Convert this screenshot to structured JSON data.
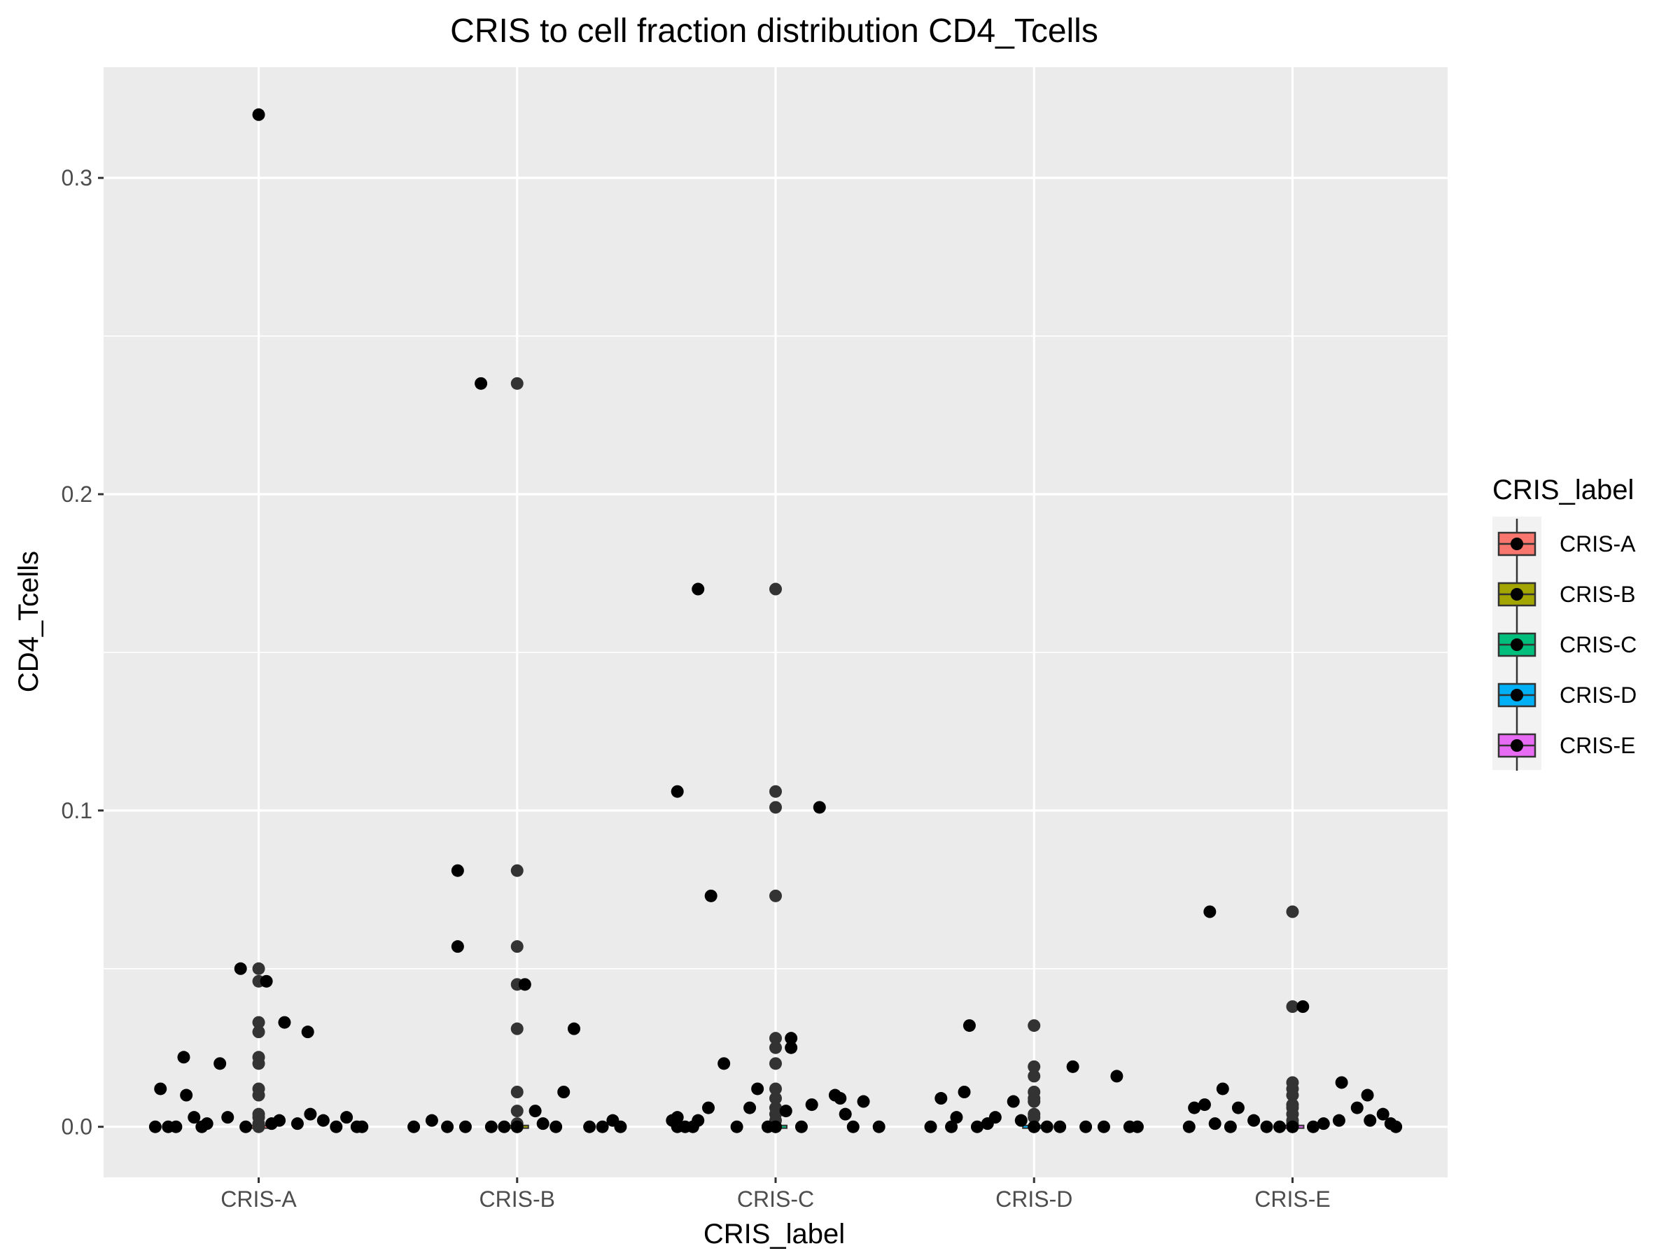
{
  "chart_data": {
    "type": "scatter",
    "title": "CRIS to cell fraction distribution CD4_Tcells",
    "xlabel": "CRIS_label",
    "ylabel": "CD4_Tcells",
    "categories": [
      "CRIS-A",
      "CRIS-B",
      "CRIS-C",
      "CRIS-D",
      "CRIS-E"
    ],
    "ylim": [
      -0.016,
      0.335
    ],
    "yticks": [
      0.0,
      0.1,
      0.2,
      0.3
    ],
    "ytick_labels": [
      "0.0",
      "0.1",
      "0.2",
      "0.3"
    ],
    "grid": true,
    "legend": {
      "title": "CRIS_label",
      "position": "right",
      "entries": [
        {
          "label": "CRIS-A",
          "color": "#F8766D"
        },
        {
          "label": "CRIS-B",
          "color": "#A3A500"
        },
        {
          "label": "CRIS-C",
          "color": "#00BF7D"
        },
        {
          "label": "CRIS-D",
          "color": "#00B0F6"
        },
        {
          "label": "CRIS-E",
          "color": "#E76BF3"
        }
      ]
    },
    "colors": {
      "panel_bg": "#EBEBEB",
      "grid": "#FFFFFF",
      "point": "#000000",
      "box_point": "#333333"
    },
    "series": [
      {
        "category": "CRIS-A",
        "jitter_points": [
          {
            "x": -0.4,
            "y": 0.0
          },
          {
            "x": -0.38,
            "y": 0.012
          },
          {
            "x": -0.35,
            "y": 0.0
          },
          {
            "x": -0.32,
            "y": 0.0
          },
          {
            "x": -0.29,
            "y": 0.022
          },
          {
            "x": -0.28,
            "y": 0.01
          },
          {
            "x": -0.25,
            "y": 0.003
          },
          {
            "x": -0.22,
            "y": 0.0
          },
          {
            "x": -0.2,
            "y": 0.001
          },
          {
            "x": -0.15,
            "y": 0.02
          },
          {
            "x": -0.12,
            "y": 0.003
          },
          {
            "x": -0.07,
            "y": 0.05
          },
          {
            "x": -0.05,
            "y": 0.0
          },
          {
            "x": 0.0,
            "y": 0.32
          },
          {
            "x": 0.03,
            "y": 0.046
          },
          {
            "x": 0.05,
            "y": 0.001
          },
          {
            "x": 0.08,
            "y": 0.002
          },
          {
            "x": 0.1,
            "y": 0.033
          },
          {
            "x": 0.15,
            "y": 0.001
          },
          {
            "x": 0.19,
            "y": 0.03
          },
          {
            "x": 0.2,
            "y": 0.004
          },
          {
            "x": 0.25,
            "y": 0.002
          },
          {
            "x": 0.3,
            "y": 0.0
          },
          {
            "x": 0.34,
            "y": 0.003
          },
          {
            "x": 0.38,
            "y": 0.0
          },
          {
            "x": 0.4,
            "y": 0.0
          }
        ],
        "box_points": [
          0.05,
          0.046,
          0.033,
          0.03,
          0.022,
          0.02,
          0.012,
          0.01,
          0.004,
          0.003,
          0.001,
          0.0
        ]
      },
      {
        "category": "CRIS-B",
        "jitter_points": [
          {
            "x": -0.4,
            "y": 0.0
          },
          {
            "x": -0.33,
            "y": 0.002
          },
          {
            "x": -0.27,
            "y": 0.0
          },
          {
            "x": -0.23,
            "y": 0.081
          },
          {
            "x": -0.23,
            "y": 0.057
          },
          {
            "x": -0.2,
            "y": 0.0
          },
          {
            "x": -0.14,
            "y": 0.235
          },
          {
            "x": -0.1,
            "y": 0.0
          },
          {
            "x": -0.05,
            "y": 0.0
          },
          {
            "x": 0.0,
            "y": 0.0
          },
          {
            "x": 0.03,
            "y": 0.045
          },
          {
            "x": 0.07,
            "y": 0.005
          },
          {
            "x": 0.1,
            "y": 0.001
          },
          {
            "x": 0.15,
            "y": 0.0
          },
          {
            "x": 0.18,
            "y": 0.011
          },
          {
            "x": 0.22,
            "y": 0.031
          },
          {
            "x": 0.28,
            "y": 0.0
          },
          {
            "x": 0.33,
            "y": 0.0
          },
          {
            "x": 0.37,
            "y": 0.002
          },
          {
            "x": 0.4,
            "y": 0.0
          }
        ],
        "box_points": [
          0.235,
          0.081,
          0.057,
          0.045,
          0.031,
          0.011,
          0.005,
          0.001,
          0.0
        ]
      },
      {
        "category": "CRIS-C",
        "jitter_points": [
          {
            "x": -0.4,
            "y": 0.002
          },
          {
            "x": -0.38,
            "y": 0.0
          },
          {
            "x": -0.38,
            "y": 0.003
          },
          {
            "x": -0.35,
            "y": 0.0
          },
          {
            "x": -0.32,
            "y": 0.0
          },
          {
            "x": -0.3,
            "y": 0.002
          },
          {
            "x": -0.26,
            "y": 0.006
          },
          {
            "x": -0.25,
            "y": 0.073
          },
          {
            "x": -0.3,
            "y": 0.17
          },
          {
            "x": -0.38,
            "y": 0.106
          },
          {
            "x": -0.2,
            "y": 0.02
          },
          {
            "x": -0.15,
            "y": 0.0
          },
          {
            "x": -0.1,
            "y": 0.006
          },
          {
            "x": -0.07,
            "y": 0.012
          },
          {
            "x": -0.03,
            "y": 0.0
          },
          {
            "x": 0.0,
            "y": 0.0
          },
          {
            "x": 0.04,
            "y": 0.005
          },
          {
            "x": 0.06,
            "y": 0.025
          },
          {
            "x": 0.06,
            "y": 0.028
          },
          {
            "x": 0.1,
            "y": 0.0
          },
          {
            "x": 0.14,
            "y": 0.007
          },
          {
            "x": 0.17,
            "y": 0.101
          },
          {
            "x": 0.23,
            "y": 0.01
          },
          {
            "x": 0.25,
            "y": 0.009
          },
          {
            "x": 0.27,
            "y": 0.004
          },
          {
            "x": 0.3,
            "y": 0.0
          },
          {
            "x": 0.34,
            "y": 0.008
          },
          {
            "x": 0.4,
            "y": 0.0
          }
        ],
        "box_points": [
          0.17,
          0.106,
          0.101,
          0.073,
          0.028,
          0.025,
          0.02,
          0.012,
          0.009,
          0.006,
          0.004,
          0.002,
          0.0
        ]
      },
      {
        "category": "CRIS-D",
        "jitter_points": [
          {
            "x": -0.4,
            "y": 0.0
          },
          {
            "x": -0.36,
            "y": 0.009
          },
          {
            "x": -0.32,
            "y": 0.0
          },
          {
            "x": -0.3,
            "y": 0.003
          },
          {
            "x": -0.27,
            "y": 0.011
          },
          {
            "x": -0.25,
            "y": 0.032
          },
          {
            "x": -0.22,
            "y": 0.0
          },
          {
            "x": -0.18,
            "y": 0.001
          },
          {
            "x": -0.15,
            "y": 0.003
          },
          {
            "x": -0.08,
            "y": 0.008
          },
          {
            "x": -0.05,
            "y": 0.002
          },
          {
            "x": 0.0,
            "y": 0.0
          },
          {
            "x": 0.05,
            "y": 0.0
          },
          {
            "x": 0.1,
            "y": 0.0
          },
          {
            "x": 0.15,
            "y": 0.019
          },
          {
            "x": 0.2,
            "y": 0.0
          },
          {
            "x": 0.27,
            "y": 0.0
          },
          {
            "x": 0.32,
            "y": 0.016
          },
          {
            "x": 0.37,
            "y": 0.0
          },
          {
            "x": 0.4,
            "y": 0.0
          }
        ],
        "box_points": [
          0.032,
          0.019,
          0.016,
          0.011,
          0.009,
          0.008,
          0.004,
          0.003,
          0.0
        ]
      },
      {
        "category": "CRIS-E",
        "jitter_points": [
          {
            "x": -0.4,
            "y": 0.0
          },
          {
            "x": -0.38,
            "y": 0.006
          },
          {
            "x": -0.34,
            "y": 0.007
          },
          {
            "x": -0.32,
            "y": 0.068
          },
          {
            "x": -0.3,
            "y": 0.001
          },
          {
            "x": -0.27,
            "y": 0.012
          },
          {
            "x": -0.24,
            "y": 0.0
          },
          {
            "x": -0.21,
            "y": 0.006
          },
          {
            "x": -0.15,
            "y": 0.002
          },
          {
            "x": -0.1,
            "y": 0.0
          },
          {
            "x": -0.05,
            "y": 0.0
          },
          {
            "x": 0.0,
            "y": 0.0
          },
          {
            "x": 0.04,
            "y": 0.038
          },
          {
            "x": 0.08,
            "y": 0.0
          },
          {
            "x": 0.12,
            "y": 0.001
          },
          {
            "x": 0.18,
            "y": 0.002
          },
          {
            "x": 0.19,
            "y": 0.014
          },
          {
            "x": 0.25,
            "y": 0.006
          },
          {
            "x": 0.29,
            "y": 0.01
          },
          {
            "x": 0.3,
            "y": 0.002
          },
          {
            "x": 0.35,
            "y": 0.004
          },
          {
            "x": 0.38,
            "y": 0.001
          },
          {
            "x": 0.4,
            "y": 0.0
          }
        ],
        "box_points": [
          0.068,
          0.038,
          0.014,
          0.012,
          0.01,
          0.007,
          0.006,
          0.004,
          0.002,
          0.001,
          0.0
        ]
      }
    ]
  }
}
